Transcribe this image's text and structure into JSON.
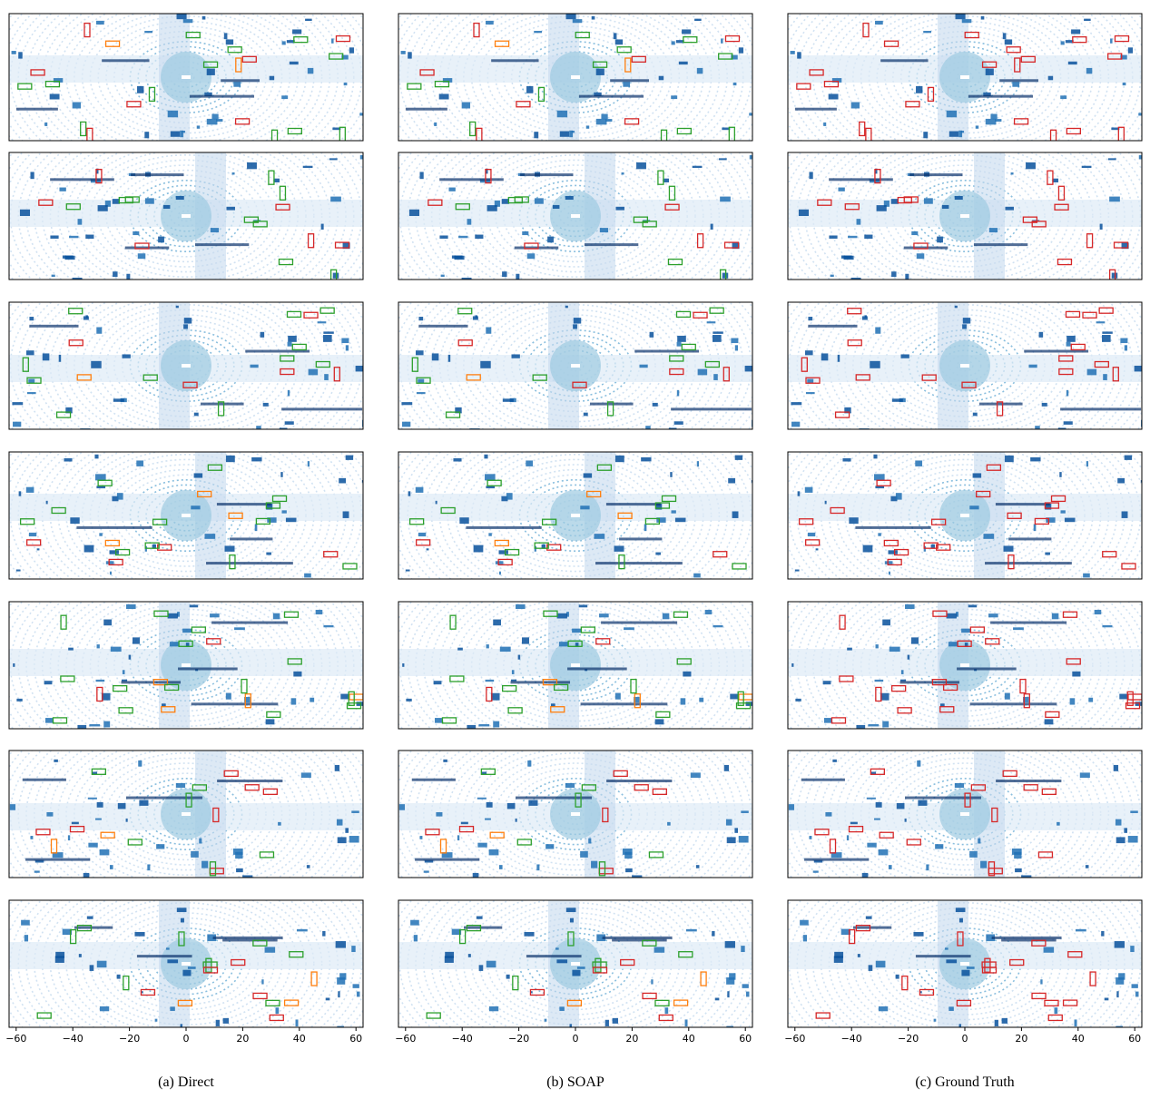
{
  "columns": [
    {
      "caption": "(a) Direct"
    },
    {
      "caption": "(b) SOAP"
    },
    {
      "caption": "(c) Ground Truth"
    }
  ],
  "x_axis": {
    "xlim": [
      -62.5,
      62.5
    ],
    "xticks": [
      {
        "value": -60,
        "label": "−60"
      },
      {
        "value": -40,
        "label": "−40"
      },
      {
        "value": -20,
        "label": "−20"
      },
      0,
      20,
      40,
      60
    ]
  }
}
